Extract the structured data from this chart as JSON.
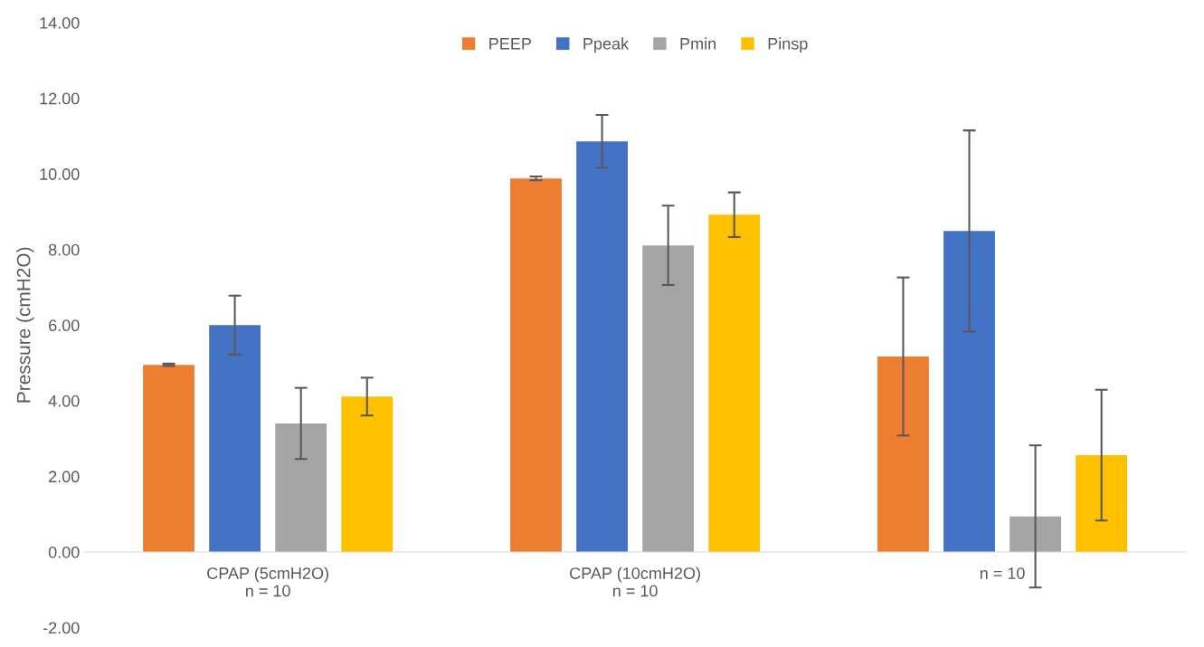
{
  "chart_data": {
    "type": "bar",
    "ylabel": "Pressure (cmH2O)",
    "categories": [
      "CPAP (5cmH2O)\nn = 10",
      "CPAP (10cmH2O)\nn = 10",
      "n = 10"
    ],
    "series": [
      {
        "name": "PEEP",
        "color": "#ed7d31",
        "values": [
          4.95,
          9.88,
          5.17
        ],
        "errors": [
          0.03,
          0.05,
          2.09
        ]
      },
      {
        "name": "Ppeak",
        "color": "#4472c4",
        "values": [
          6.0,
          10.86,
          8.49
        ],
        "errors": [
          0.78,
          0.7,
          2.66
        ]
      },
      {
        "name": "Pmin",
        "color": "#a5a5a5",
        "values": [
          3.4,
          8.11,
          0.94
        ],
        "errors": [
          0.94,
          1.05,
          1.88
        ]
      },
      {
        "name": "Pinsp",
        "color": "#ffc000",
        "values": [
          4.11,
          8.92,
          2.56
        ],
        "errors": [
          0.5,
          0.59,
          1.73
        ]
      }
    ],
    "ylim": [
      -2,
      14
    ],
    "yticks": [
      {
        "value": -2,
        "label": "-2.00"
      },
      {
        "value": 0,
        "label": "0.00"
      },
      {
        "value": 2,
        "label": "2.00"
      },
      {
        "value": 4,
        "label": "4.00"
      },
      {
        "value": 6,
        "label": "6.00"
      },
      {
        "value": 8,
        "label": "8.00"
      },
      {
        "value": 10,
        "label": "10.00"
      },
      {
        "value": 12,
        "label": "12.00"
      },
      {
        "value": 14,
        "label": "14.00"
      }
    ],
    "grid": false,
    "legend": "top"
  }
}
